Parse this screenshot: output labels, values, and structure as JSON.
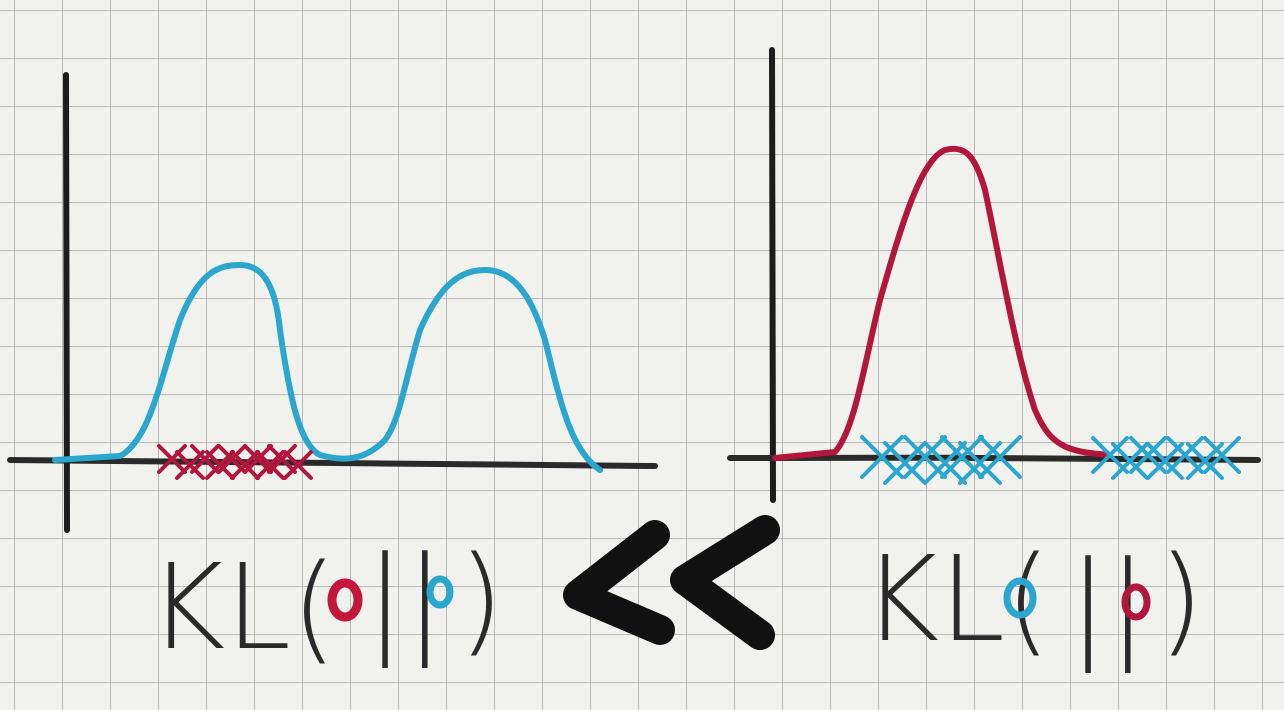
{
  "left_formula": {
    "open": "KL(",
    "separator": "||",
    "close": ")"
  },
  "right_formula": {
    "open": "KL(",
    "separator": "||",
    "close": ")"
  }
}
